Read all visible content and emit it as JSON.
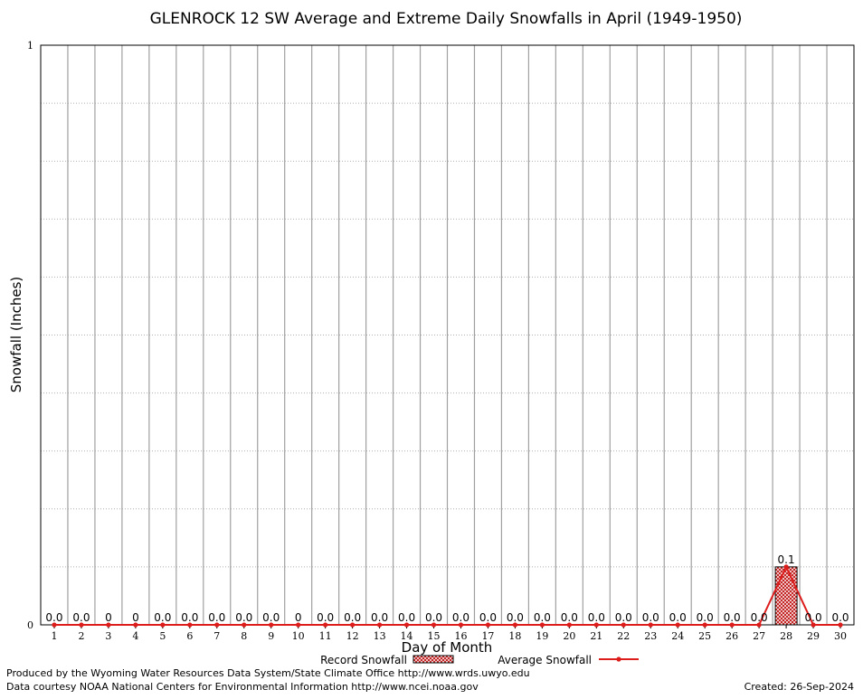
{
  "chart_data": {
    "type": "bar",
    "title": "GLENROCK 12 SW Average and Extreme Daily Snowfalls in April (1949-1950)",
    "xlabel": "Day of Month",
    "ylabel": "Snowfall (Inches)",
    "ylim": [
      0,
      1
    ],
    "ytick_labels": [
      "0",
      "1"
    ],
    "categories": [
      "1",
      "2",
      "3",
      "4",
      "5",
      "6",
      "7",
      "8",
      "9",
      "10",
      "11",
      "12",
      "13",
      "14",
      "15",
      "16",
      "17",
      "18",
      "19",
      "20",
      "21",
      "22",
      "23",
      "24",
      "25",
      "26",
      "27",
      "28",
      "29",
      "30"
    ],
    "series": [
      {
        "name": "Record Snowfall",
        "kind": "bar",
        "values": [
          0,
          0,
          0,
          0,
          0,
          0,
          0,
          0,
          0,
          0,
          0,
          0,
          0,
          0,
          0,
          0,
          0,
          0,
          0,
          0,
          0,
          0,
          0,
          0,
          0,
          0,
          0,
          0.1,
          0,
          0
        ],
        "labels": [
          "0.0",
          "0.0",
          "0",
          "0",
          "0.0",
          "0.0",
          "0.0",
          "0.0",
          "0.0",
          "0",
          "0.0",
          "0.0",
          "0.0",
          "0.0",
          "0.0",
          "0.0",
          "0.0",
          "0.0",
          "0.0",
          "0.0",
          "0.0",
          "0.0",
          "0.0",
          "0.0",
          "0.0",
          "0.0",
          "0.0",
          "0.1",
          "0.0",
          "0.0"
        ]
      },
      {
        "name": "Average Snowfall",
        "kind": "line",
        "values": [
          0,
          0,
          0,
          0,
          0,
          0,
          0,
          0,
          0,
          0,
          0,
          0,
          0,
          0,
          0,
          0,
          0,
          0,
          0,
          0,
          0,
          0,
          0,
          0,
          0,
          0,
          0,
          0.1,
          0,
          0
        ]
      }
    ],
    "grid": true,
    "legend_placement": "bottom-center",
    "colors": {
      "line": "#dd1c1c",
      "bar_edge": "#000000",
      "grid_v": "#a0a0a0",
      "grid_h": "#b0b0b0"
    }
  },
  "footer": {
    "line1": "Produced by the Wyoming Water Resources Data System/State Climate Office http://www.wrds.uwyo.edu",
    "line2": "Data courtesy NOAA National Centers for Environmental Information http://www.ncei.noaa.gov",
    "created": "Created:  26-Sep-2024"
  }
}
